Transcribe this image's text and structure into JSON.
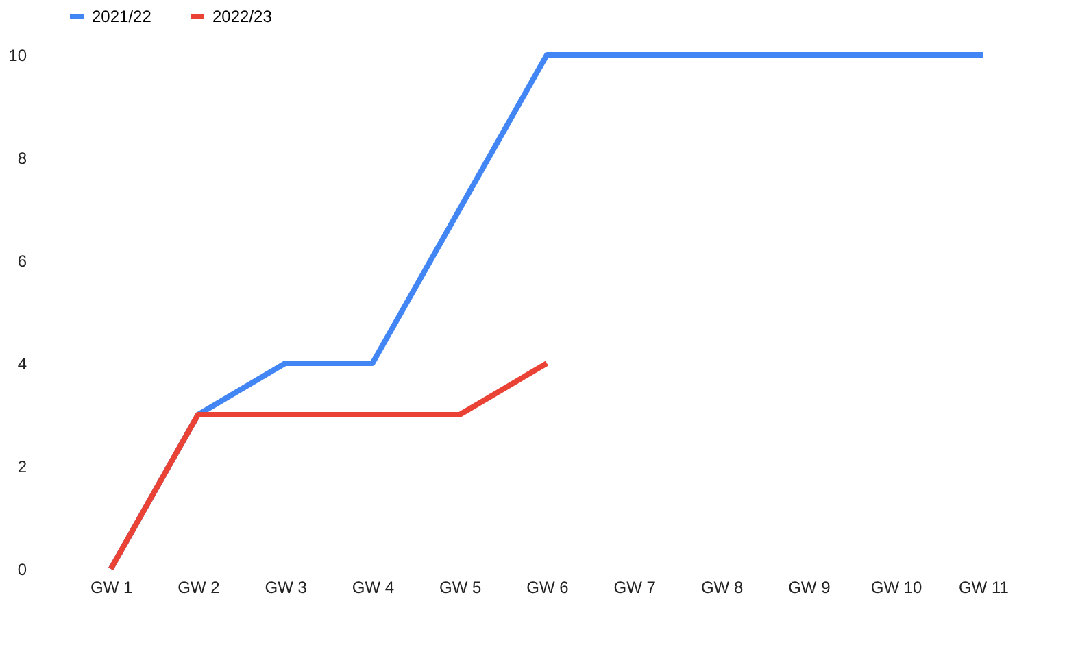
{
  "chart_data": {
    "type": "line",
    "categories": [
      "GW 1",
      "GW 2",
      "GW 3",
      "GW 4",
      "GW 5",
      "GW 6",
      "GW 7",
      "GW 8",
      "GW 9",
      "GW 10",
      "GW 11"
    ],
    "series": [
      {
        "name": "2021/22",
        "color": "#4285f4",
        "values": [
          0,
          3,
          4,
          4,
          7,
          10,
          10,
          10,
          10,
          10,
          10
        ]
      },
      {
        "name": "2022/23",
        "color": "#ea4335",
        "values": [
          0,
          3,
          3,
          3,
          3,
          4,
          null,
          null,
          null,
          null,
          null
        ]
      }
    ],
    "ylim": [
      0,
      10
    ],
    "yticks": [
      0,
      2,
      4,
      6,
      8,
      10
    ],
    "legend": "top"
  }
}
